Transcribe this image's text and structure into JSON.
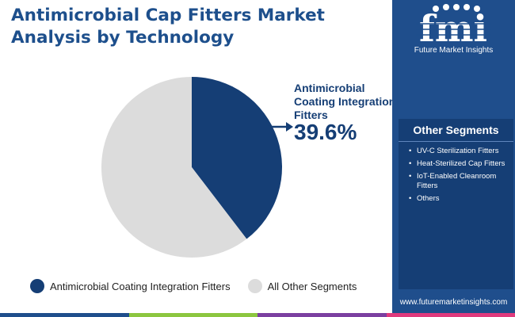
{
  "title": "Antimicrobial Cap Fitters Market Analysis by Technology",
  "chart_data": {
    "type": "pie",
    "slices": [
      {
        "label": "Antimicrobial Coating Integration Fitters",
        "value": 39.6,
        "color": "#153e75"
      },
      {
        "label": "All Other Segments",
        "value": 60.4,
        "color": "#dcdcdc"
      }
    ],
    "callout": {
      "label": "Antimicrobial Coating Integration Fitters",
      "value": "39.6%"
    },
    "legend": [
      {
        "label": "Antimicrobial Coating Integration Fitters",
        "color": "#153e75"
      },
      {
        "label": "All Other Segments",
        "color": "#dcdcdc"
      }
    ],
    "legend_position": "bottom"
  },
  "brand": {
    "logo_letters": "fmi",
    "name": "Future Market Insights",
    "website": "www.futuremarketinsights.com"
  },
  "other_segments": {
    "title": "Other Segments",
    "items": [
      "UV-C Sterilization Fitters",
      "Heat-Sterilized Cap Fitters",
      "IoT-Enabled Cleanroom Fitters",
      "Others"
    ]
  },
  "colors": {
    "title": "#1d4f8c",
    "sidebar": "#1f4e8c",
    "segment_box": "#153e75",
    "bottom_bar": [
      "#1f4e8c",
      "#8cc63f",
      "#7b3fa0",
      "#e03a7d"
    ]
  }
}
